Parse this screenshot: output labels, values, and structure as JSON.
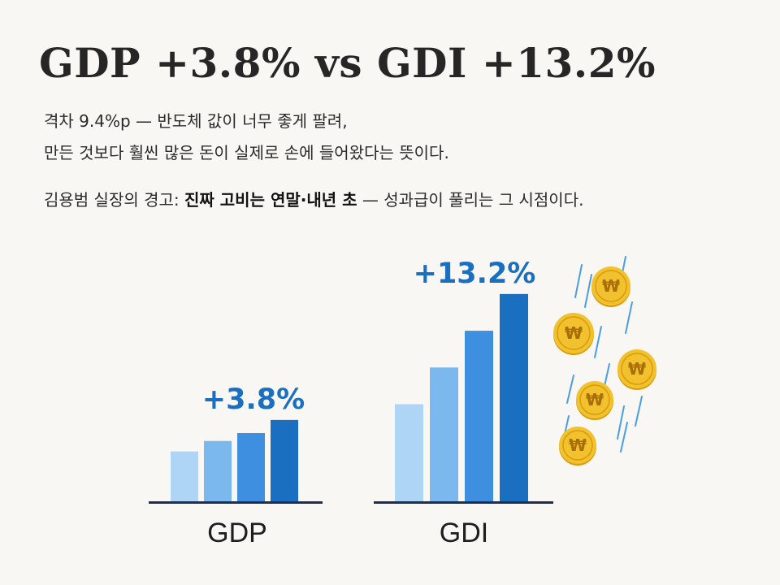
{
  "title": "GDP +3.8% vs GDI +13.2%",
  "subtitle": {
    "line1": "격차 9.4%p — 반도체 값이 너무 좋게 팔려,",
    "line2": "만든 것보다 훨씬 많은 돈이 실제로 손에 들어왔다는 뜻이다.",
    "line3_prefix": "김용범 실장의 경고: ",
    "line3_bold": "진짜 고비는 연말·내년 초",
    "line3_suffix": " — 성과급이 풀리는 그 시점이다."
  },
  "colors": {
    "bar_shades": [
      "#aed4f6",
      "#7ab8ee",
      "#3f8fe0",
      "#1a6fc0"
    ],
    "accent": "#1a6fc0",
    "baseline": "#1c2f52",
    "coin": "#f2c12e",
    "coin_rim": "#d99a0c",
    "streak": "#4a9ee0"
  },
  "decoration": {
    "icon": "falling-won-coins-icon",
    "coin_symbol": "₩"
  },
  "chart_data": {
    "type": "bar",
    "groups": [
      {
        "label": "GDP",
        "annotation": "+3.8%",
        "values": [
          0.19,
          0.23,
          0.26,
          0.31
        ]
      },
      {
        "label": "GDI",
        "annotation": "+13.2%",
        "values": [
          0.37,
          0.51,
          0.65,
          0.79
        ]
      }
    ],
    "ylim": [
      0,
      1
    ],
    "grid": false,
    "legend": "none"
  }
}
